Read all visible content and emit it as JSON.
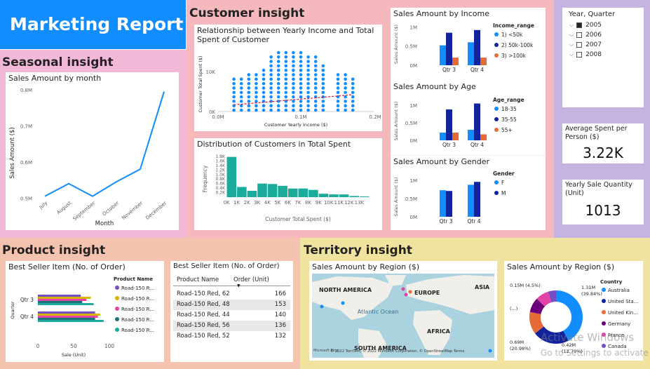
{
  "report_title": "Marketing Report",
  "sections": {
    "seasonal": "Seasonal insight",
    "customer": "Customer insight",
    "product": "Product insight",
    "territory": "Territory insight"
  },
  "colors": {
    "blue": "#118dff",
    "navy": "#12239e",
    "orange": "#e66c37",
    "teal": "#1aab9b",
    "purple": "#6b007b",
    "pink": "#e044a7",
    "violet": "#744ec2",
    "yellow": "#d9b300",
    "green": "#197278"
  },
  "month_chart": {
    "type": "line",
    "title": "Sales Amount by month",
    "xlabel": "Month",
    "ylabel": "Sales Amount ($)",
    "categories": [
      "July",
      "August",
      "September",
      "October",
      "November",
      "December"
    ],
    "values": [
      0.47,
      0.505,
      0.47,
      0.51,
      0.545,
      0.76
    ],
    "yticks": [
      "0.5M",
      "0.6M",
      "0.7M",
      "0.8M"
    ],
    "ylim": [
      0.45,
      0.8
    ]
  },
  "scatter_chart": {
    "type": "scatter",
    "title": "Relationship between Yearly Income and Total Spent of Customer",
    "xlabel": "Customer Yearly Income ($)",
    "ylabel": "Customer Total Spent ($)",
    "xticks": [
      "0.0M",
      "0.1M",
      "0.2M"
    ],
    "yticks": [
      "0K",
      "10K"
    ],
    "x": [
      10,
      20,
      30,
      40,
      50,
      60,
      70,
      80,
      90,
      100,
      110,
      120,
      130,
      150,
      160,
      170
    ],
    "ymax": [
      7,
      7,
      8,
      8,
      9,
      12,
      13,
      13,
      13,
      13,
      12,
      12,
      10,
      8,
      8,
      7
    ]
  },
  "hist_chart": {
    "type": "bar",
    "title": "Distribution of Customers in Total Spent",
    "xlabel": "Customer Total Spent ($)",
    "ylabel": "Frequency",
    "categories": [
      "0K",
      "1K",
      "2K",
      "3K",
      "4K",
      "5K",
      "6K",
      "7K",
      "8K",
      "9K",
      "10K",
      "11K",
      "12K",
      "13K"
    ],
    "values": [
      1.78,
      0.45,
      0.28,
      0.6,
      0.58,
      0.5,
      0.38,
      0.38,
      0.32,
      0.15,
      0.12,
      0.12,
      0.05,
      0.03
    ],
    "yticks": [
      "0.2K",
      "0.4K",
      "0.6K",
      "0.8K",
      "1.0K",
      "1.2K",
      "1.4K",
      "1.6K",
      "1.8K"
    ]
  },
  "income_chart": {
    "type": "bar",
    "title": "Sales Amount by Income",
    "ylabel": "Sales Amount ($)",
    "categories": [
      "Qtr 3",
      "Qtr 4"
    ],
    "yticks": [
      "0M",
      "0.5M",
      "1M"
    ],
    "legend_title": "Income_range",
    "series": [
      {
        "name": "1) <50k",
        "values": [
          0.52,
          0.6
        ]
      },
      {
        "name": "2) 50k-100k",
        "values": [
          0.85,
          0.92
        ]
      },
      {
        "name": "3) >100k",
        "values": [
          0.2,
          0.2
        ]
      }
    ]
  },
  "age_chart": {
    "type": "bar",
    "title": "Sales Amount by Age",
    "ylabel": "Sales Amount ($)",
    "categories": [
      "Qtr 3",
      "Qtr 4"
    ],
    "yticks": [
      "0M",
      "0.5M",
      "1M"
    ],
    "legend_title": "Age_range",
    "series": [
      {
        "name": "18-35",
        "values": [
          0.22,
          0.3
        ]
      },
      {
        "name": "35-55",
        "values": [
          0.88,
          1.05
        ]
      },
      {
        "name": "55+",
        "values": [
          0.22,
          0.17
        ]
      }
    ]
  },
  "gender_chart": {
    "type": "bar",
    "title": "Sales Amount by Gender",
    "ylabel": "Sales Amount ($)",
    "categories": [
      "Qtr 3",
      "Qtr 4"
    ],
    "yticks": [
      "0M",
      "0.5M",
      "1M"
    ],
    "legend_title": "Gender",
    "series": [
      {
        "name": "F",
        "values": [
          0.73,
          0.88
        ]
      },
      {
        "name": "M",
        "values": [
          0.71,
          0.96
        ]
      }
    ]
  },
  "slicer": {
    "title": "Year, Quarter",
    "items": [
      {
        "label": "2005",
        "checked": true
      },
      {
        "label": "2006",
        "checked": false
      },
      {
        "label": "2007",
        "checked": false
      },
      {
        "label": "2008",
        "checked": false
      }
    ]
  },
  "kpi1": {
    "label": "Average Spent per Person ($)",
    "value": "3.22K"
  },
  "kpi2": {
    "label": "Yearly Sale Quantity (Unit)",
    "value": "1013"
  },
  "bestseller_chart": {
    "type": "bar",
    "title": "Best Seller Item (No. of Order)",
    "ylabel": "Quarter",
    "xlabel": "Sale (Unit)",
    "categories": [
      "Qtr 3",
      "Qtr 4"
    ],
    "xticks": [
      "0",
      "50",
      "100"
    ],
    "legend_title": "Product Name",
    "series": [
      {
        "name": "Road-150 R...",
        "values": [
          60,
          80
        ]
      },
      {
        "name": "Road-150 R...",
        "values": [
          74,
          87
        ]
      },
      {
        "name": "Road-150 R...",
        "values": [
          68,
          84
        ]
      },
      {
        "name": "Road-150 R...",
        "values": [
          62,
          80
        ]
      },
      {
        "name": "Road-150 R...",
        "values": [
          78,
          92
        ]
      }
    ]
  },
  "bestseller_table": {
    "title": "Best Seller Item (No. of Order)",
    "columns": [
      "Product Name",
      "Order (Unit)"
    ],
    "rows": [
      [
        "Road-150 Red, 62",
        "166"
      ],
      [
        "Road-150 Red, 48",
        "153"
      ],
      [
        "Road-150 Red, 44",
        "140"
      ],
      [
        "Road-150 Red, 56",
        "136"
      ],
      [
        "Road-150 Red, 52",
        "132"
      ]
    ]
  },
  "map": {
    "title": "Sales Amount by Region ($)",
    "labels": {
      "na": "NORTH AMERICA",
      "eu": "EUROPE",
      "asia": "ASIA",
      "ao": "Atlantic Ocean",
      "af": "AFRICA",
      "sa": "SOUTH AMERICA"
    },
    "copyright": "© 2022 TomTom, © 2022 Microsoft Corporation, © OpenStreetMap Terms",
    "brand": "Microsoft Bing"
  },
  "donut_chart": {
    "type": "pie",
    "title": "Sales Amount by Region ($)",
    "legend_title": "Country",
    "series": [
      {
        "name": "Australia",
        "value": 1.31
      },
      {
        "name": "United Sta...",
        "value": 0.69
      },
      {
        "name": "United Kin...",
        "value": 0.42
      },
      {
        "name": "Germany",
        "value": 0.28
      },
      {
        "name": "France",
        "value": 0.25
      },
      {
        "name": "Canada",
        "value": 0.15
      }
    ],
    "labels": {
      "top_left": "0.15M (4.5%)",
      "left_mid": "(...)",
      "left_bottom": "0.69M",
      "left_bottom_pct": "(20.98%)",
      "right_top": "1.31M",
      "right_top_pct": "(39.84%)",
      "bottom": "0.42M",
      "bottom_pct": "(12.79%)"
    }
  },
  "watermark": {
    "line1": "Activate Windows",
    "line2": "Go to Settings to activate Windows."
  }
}
